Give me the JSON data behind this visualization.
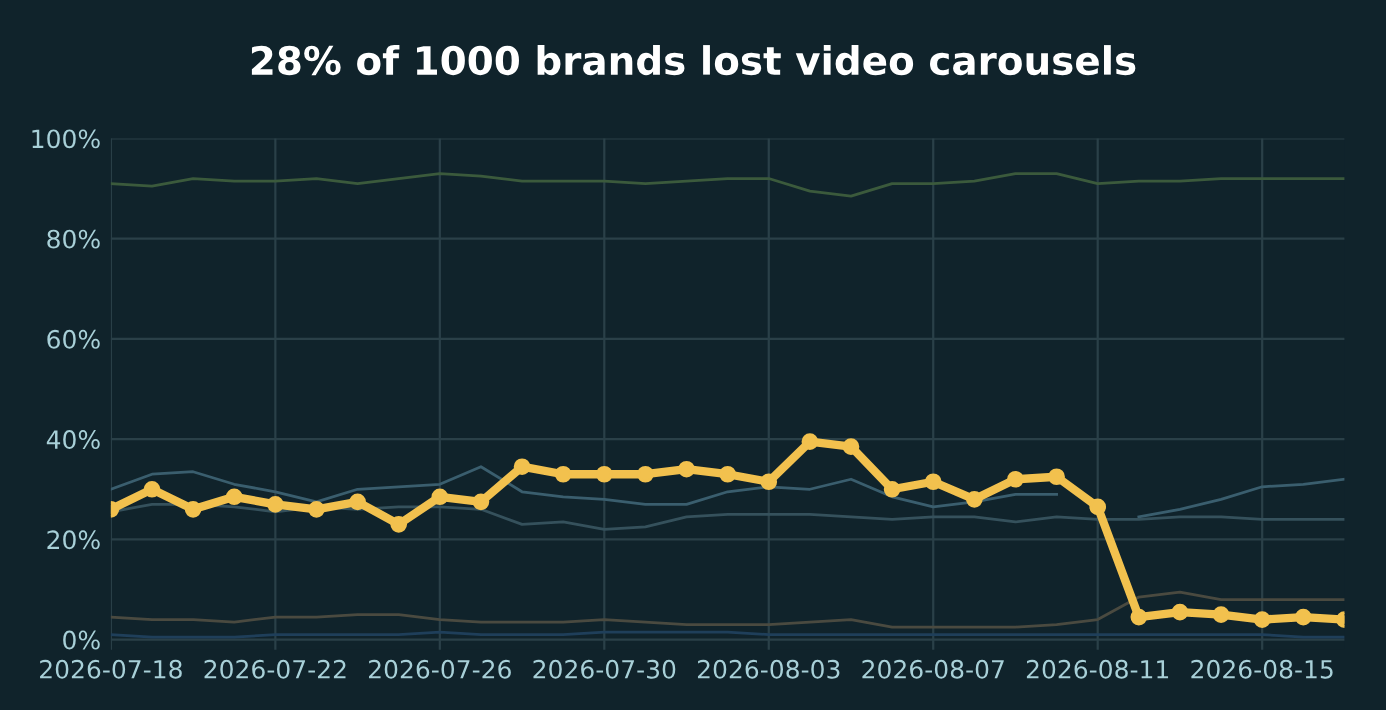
{
  "chart_data": {
    "type": "line",
    "title": "28% of 1000 brands lost video carousels",
    "x": [
      "2026-07-18",
      "2026-07-19",
      "2026-07-20",
      "2026-07-21",
      "2026-07-22",
      "2026-07-23",
      "2026-07-24",
      "2026-07-25",
      "2026-07-26",
      "2026-07-27",
      "2026-07-28",
      "2026-07-29",
      "2026-07-30",
      "2026-07-31",
      "2026-08-01",
      "2026-08-02",
      "2026-08-03",
      "2026-08-04",
      "2026-08-05",
      "2026-08-06",
      "2026-08-07",
      "2026-08-08",
      "2026-08-09",
      "2026-08-10",
      "2026-08-11",
      "2026-08-12",
      "2026-08-13",
      "2026-08-14",
      "2026-08-15",
      "2026-08-16",
      "2026-08-17"
    ],
    "series": [
      {
        "color": "#3b5a3c",
        "marker": "none",
        "values": [
          91,
          90.5,
          92,
          91.5,
          91.5,
          92,
          91,
          92,
          93,
          92.5,
          91.5,
          91.5,
          91.5,
          91,
          91.5,
          92,
          92,
          89.5,
          88.5,
          91,
          91,
          91.5,
          93,
          93,
          91,
          91.5,
          91.5,
          92,
          92,
          92,
          92
        ]
      },
      {
        "color": "#3a5e6e",
        "marker": "none",
        "values": [
          30,
          33,
          33.5,
          31,
          29.5,
          27.5,
          30,
          30.5,
          31,
          34.5,
          29.5,
          28.5,
          28,
          27,
          27,
          29.5,
          30.5,
          30,
          32,
          28.5,
          26.5,
          27.5,
          29,
          29,
          null,
          24.5,
          26,
          28,
          30.5,
          31,
          32
        ]
      },
      {
        "color": "#35515c",
        "marker": "none",
        "values": [
          25.5,
          27,
          27,
          26.5,
          25.5,
          26.5,
          26,
          26.5,
          26.5,
          26,
          23,
          23.5,
          22,
          22.5,
          24.5,
          25,
          25,
          25,
          24.5,
          24,
          24.5,
          24.5,
          23.5,
          24.5,
          24,
          24,
          24.5,
          24.5,
          24,
          24,
          24
        ]
      },
      {
        "color": "#4a4a40",
        "marker": "none",
        "values": [
          4.5,
          4,
          4,
          3.5,
          4.5,
          4.5,
          5,
          5,
          4,
          3.5,
          3.5,
          3.5,
          4,
          3.5,
          3,
          3,
          3,
          3.5,
          4,
          2.5,
          2.5,
          2.5,
          2.5,
          3,
          4,
          8.5,
          9.5,
          8,
          8,
          8,
          8
        ]
      },
      {
        "color": "#1f3f5a",
        "marker": "none",
        "values": [
          1,
          0.5,
          0.5,
          0.5,
          1,
          1,
          1,
          1,
          1.5,
          1,
          1,
          1,
          1.5,
          1.5,
          1.5,
          1.5,
          1,
          1,
          1,
          1,
          1,
          1,
          1,
          1,
          1,
          1,
          1,
          1,
          1,
          0.5,
          0.5
        ]
      },
      {
        "color": "#f2c14e",
        "marker": "circle",
        "values": [
          26,
          30,
          26,
          28.5,
          27,
          26,
          27.5,
          23,
          28.5,
          27.5,
          34.5,
          33,
          33,
          33,
          34,
          33,
          31.5,
          39.5,
          38.5,
          30,
          31.5,
          28,
          32,
          32.5,
          26.5,
          4.5,
          5.5,
          5,
          4,
          4.5,
          4
        ]
      }
    ],
    "xlim": [
      "2026-07-18",
      "2026-08-17"
    ],
    "xticks": [
      "2026-07-18",
      "2026-07-22",
      "2026-07-26",
      "2026-07-30",
      "2026-08-03",
      "2026-08-07",
      "2026-08-11",
      "2026-08-15"
    ],
    "ylim": [
      -2,
      100
    ],
    "yticks": [
      {
        "value": 0,
        "label": "0%"
      },
      {
        "value": 20,
        "label": "20%"
      },
      {
        "value": 40,
        "label": "40%"
      },
      {
        "value": 60,
        "label": "60%"
      },
      {
        "value": 80,
        "label": "80%"
      },
      {
        "value": 100,
        "label": "100%"
      }
    ],
    "grid": true
  }
}
